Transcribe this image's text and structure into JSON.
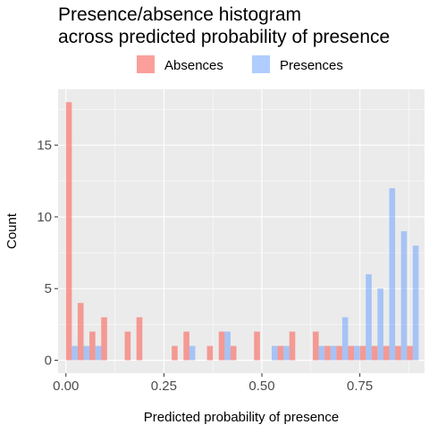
{
  "chart_data": {
    "type": "bar",
    "title_lines": [
      "Presence/absence histogram",
      "across predicted probability of presence"
    ],
    "xlabel": "Predicted probability of presence",
    "ylabel": "Count",
    "xlim": [
      -0.02,
      0.915
    ],
    "ylim": [
      -0.9,
      18.9
    ],
    "x_ticks": [
      {
        "value": 0.0,
        "label": "0.00"
      },
      {
        "value": 0.25,
        "label": "0.25"
      },
      {
        "value": 0.5,
        "label": "0.50"
      },
      {
        "value": 0.75,
        "label": "0.75"
      }
    ],
    "y_ticks": [
      {
        "value": 0,
        "label": "0"
      },
      {
        "value": 5,
        "label": "5"
      },
      {
        "value": 10,
        "label": "10"
      },
      {
        "value": 15,
        "label": "15"
      }
    ],
    "legend": {
      "position": "top"
    },
    "bin_centers": [
      0.015,
      0.045,
      0.075,
      0.105,
      0.135,
      0.165,
      0.195,
      0.225,
      0.255,
      0.285,
      0.315,
      0.345,
      0.375,
      0.405,
      0.435,
      0.465,
      0.495,
      0.525,
      0.555,
      0.585,
      0.615,
      0.645,
      0.675,
      0.705,
      0.735,
      0.765,
      0.795,
      0.825,
      0.855,
      0.885
    ],
    "series": [
      {
        "name": "Absences",
        "color": "#F8766D",
        "values": [
          18,
          4,
          2,
          3,
          0,
          2,
          3,
          0,
          0,
          1,
          2,
          0,
          1,
          2,
          1,
          0,
          2,
          0,
          1,
          2,
          0,
          2,
          1,
          1,
          1,
          1,
          1,
          1,
          1,
          1
        ]
      },
      {
        "name": "Presences",
        "color": "#619CFF",
        "values": [
          1,
          1,
          1,
          0,
          0,
          0,
          0,
          0,
          0,
          0,
          1,
          0,
          0,
          2,
          0,
          0,
          0,
          1,
          1,
          0,
          0,
          1,
          1,
          3,
          1,
          6,
          5,
          12,
          9,
          8
        ]
      }
    ]
  }
}
